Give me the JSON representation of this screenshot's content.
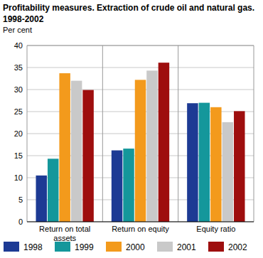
{
  "chart_data": {
    "type": "bar",
    "title": "Profitability measures. Extraction of crude oil and natural gas. 1998-2002",
    "y_label": "Per cent",
    "categories": [
      "Return on total assets",
      "Return on equity",
      "Equity ratio"
    ],
    "series": [
      {
        "name": "1998",
        "color": "#1d3a94",
        "values": [
          10.5,
          16.2,
          26.9
        ]
      },
      {
        "name": "1999",
        "color": "#14979b",
        "values": [
          14.3,
          16.6,
          27.0
        ]
      },
      {
        "name": "2000",
        "color": "#f39a1c",
        "values": [
          33.7,
          32.2,
          26.0
        ]
      },
      {
        "name": "2001",
        "color": "#c9c9c9",
        "values": [
          32.0,
          34.3,
          22.6
        ]
      },
      {
        "name": "2002",
        "color": "#9e0e0e",
        "values": [
          29.9,
          36.1,
          25.1
        ]
      }
    ],
    "ylim": [
      0,
      40
    ],
    "yticks": [
      0,
      5,
      10,
      15,
      20,
      25,
      30,
      35,
      40
    ],
    "grid": true,
    "legend": "bottom"
  }
}
